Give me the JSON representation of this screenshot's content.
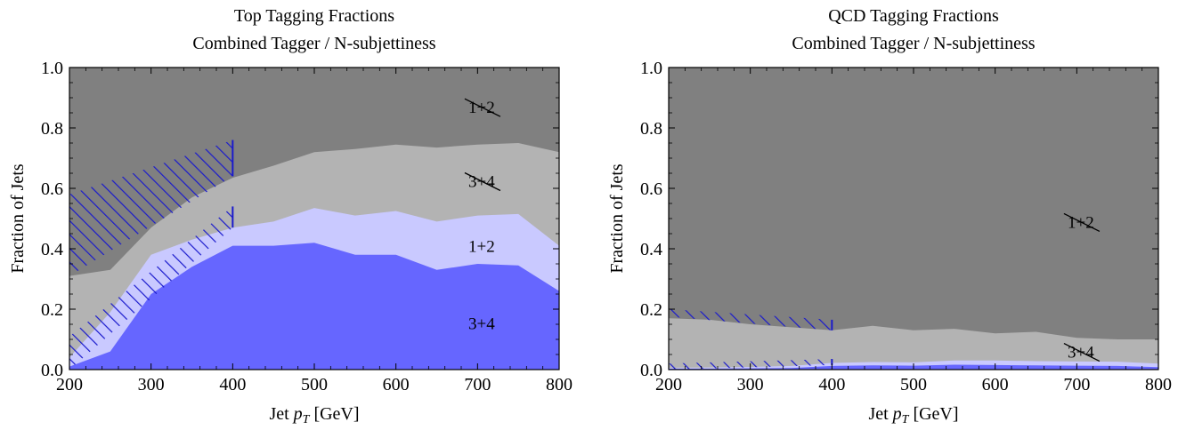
{
  "chart_data": [
    {
      "type": "area",
      "title": "Top Tagging Fractions",
      "subtitle": "Combined Tagger / N-subjettiness",
      "xlabel": "Jet",
      "xlabel_var": "p",
      "xlabel_sub": "T",
      "xlabel_unit": "[GeV]",
      "ylabel": "Fraction of Jets",
      "xlim": [
        200,
        800
      ],
      "ylim": [
        0,
        1
      ],
      "xticks": [
        "200",
        "300",
        "400",
        "500",
        "600",
        "700",
        "800"
      ],
      "yticks": [
        "0.0",
        "0.2",
        "0.4",
        "0.6",
        "0.8",
        "1.0"
      ],
      "x": [
        200,
        250,
        300,
        350,
        400,
        450,
        500,
        550,
        600,
        650,
        700,
        750,
        800
      ],
      "boundaries": [
        {
          "name": "3+4",
          "values": [
            0.01,
            0.06,
            0.25,
            0.34,
            0.41,
            0.41,
            0.42,
            0.38,
            0.38,
            0.33,
            0.35,
            0.345,
            0.26
          ]
        },
        {
          "name": "1+2",
          "values": [
            0.04,
            0.19,
            0.38,
            0.43,
            0.47,
            0.49,
            0.535,
            0.51,
            0.525,
            0.49,
            0.51,
            0.515,
            0.41
          ]
        },
        {
          "name": "3+4",
          "values": [
            0.31,
            0.33,
            0.47,
            0.57,
            0.635,
            0.675,
            0.72,
            0.73,
            0.745,
            0.735,
            0.745,
            0.75,
            0.72
          ]
        }
      ],
      "hatch_bands": [
        {
          "x": [
            200,
            400
          ],
          "lower": [
            0.31,
            0.64
          ],
          "upper": [
            0.58,
            0.76
          ]
        },
        {
          "x": [
            200,
            400
          ],
          "lower": [
            0.0,
            0.47
          ],
          "upper": [
            0.11,
            0.54
          ]
        }
      ],
      "region_labels": [
        {
          "text": "1+2",
          "x": 705,
          "y": 0.87,
          "struck": true
        },
        {
          "text": "3+4",
          "x": 705,
          "y": 0.625,
          "struck": true
        },
        {
          "text": "1+2",
          "x": 705,
          "y": 0.41,
          "struck": false
        },
        {
          "text": "3+4",
          "x": 705,
          "y": 0.155,
          "struck": false
        }
      ]
    },
    {
      "type": "area",
      "title": "QCD Tagging Fractions",
      "subtitle": "Combined Tagger / N-subjettiness",
      "xlabel": "Jet",
      "xlabel_var": "p",
      "xlabel_sub": "T",
      "xlabel_unit": "[GeV]",
      "ylabel": "Fraction of Jets",
      "xlim": [
        200,
        800
      ],
      "ylim": [
        0,
        1
      ],
      "xticks": [
        "200",
        "300",
        "400",
        "500",
        "600",
        "700",
        "800"
      ],
      "yticks": [
        "0.0",
        "0.2",
        "0.4",
        "0.6",
        "0.8",
        "1.0"
      ],
      "x": [
        200,
        250,
        300,
        350,
        400,
        450,
        500,
        550,
        600,
        650,
        700,
        750,
        800
      ],
      "boundaries": [
        {
          "name": "3+4",
          "values": [
            0.003,
            0.003,
            0.004,
            0.005,
            0.012,
            0.014,
            0.013,
            0.016,
            0.015,
            0.014,
            0.013,
            0.012,
            0.008
          ]
        },
        {
          "name": "1+2",
          "values": [
            0.006,
            0.007,
            0.009,
            0.012,
            0.022,
            0.025,
            0.024,
            0.03,
            0.03,
            0.028,
            0.027,
            0.026,
            0.02
          ]
        },
        {
          "name": "3+4",
          "values": [
            0.17,
            0.165,
            0.15,
            0.14,
            0.13,
            0.145,
            0.13,
            0.135,
            0.12,
            0.125,
            0.105,
            0.1,
            0.1
          ]
        }
      ],
      "hatch_bands": [
        {
          "x": [
            200,
            400
          ],
          "lower": [
            0.175,
            0.13
          ],
          "upper": [
            0.2,
            0.165
          ]
        },
        {
          "x": [
            200,
            400
          ],
          "lower": [
            0.0,
            0.015
          ],
          "upper": [
            0.02,
            0.035
          ]
        }
      ],
      "region_labels": [
        {
          "text": "1+2",
          "x": 705,
          "y": 0.49,
          "struck": true
        },
        {
          "text": "3+4",
          "x": 705,
          "y": 0.06,
          "struck": true
        }
      ]
    }
  ],
  "colors": {
    "band_dark_gray": "#808080",
    "band_light_gray": "#b3b3b3",
    "band_light_blue": "#c9c9ff",
    "band_blue": "#6666ff",
    "hatch": "#1a1acc"
  }
}
